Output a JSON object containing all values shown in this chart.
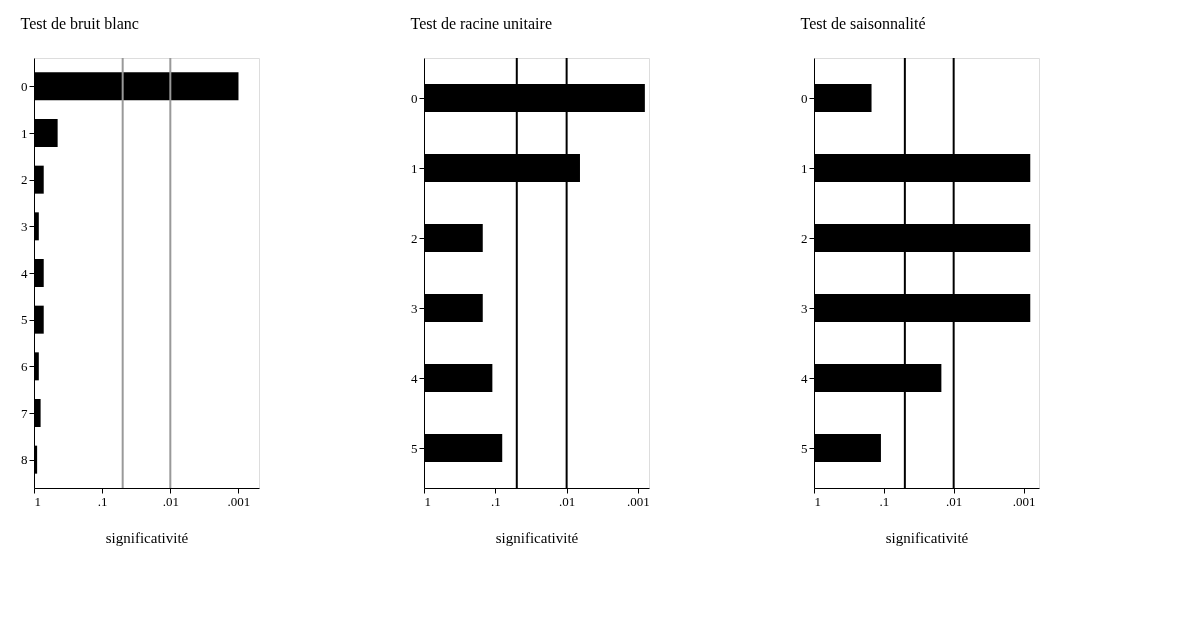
{
  "chart_data": [
    {
      "type": "bar",
      "orientation": "horizontal",
      "title": "Test de bruit blanc",
      "xlabel": "significativité",
      "categories": [
        "0",
        "1",
        "2",
        "3",
        "4",
        "5",
        "6",
        "7",
        "8"
      ],
      "base": [
        1,
        1,
        1,
        1,
        1,
        1,
        1,
        1,
        1
      ],
      "values": [
        -0.999,
        -0.55,
        -0.28,
        -0.15,
        -0.28,
        -0.28,
        -0.15,
        -0.2,
        -0.1
      ],
      "color": "#000000",
      "log": "x",
      "xlim": [
        1,
        0.0005
      ],
      "xticks": [
        1,
        {
          "value": 0.1,
          "label": ".1"
        },
        {
          "value": 0.01,
          "label": ".01"
        },
        {
          "value": 0.001,
          "label": ".001"
        }
      ],
      "ref_lines": [
        {
          "axis": "x",
          "value": 0.05,
          "color": "#999999"
        },
        {
          "axis": "x",
          "value": 0.01,
          "color": "#999999"
        }
      ],
      "grid": false
    },
    {
      "type": "bar",
      "orientation": "horizontal",
      "title": "Test de racine unitaire",
      "xlabel": "significativité",
      "categories": [
        "0",
        "1",
        "2",
        "3",
        "4",
        "5"
      ],
      "base": [
        1,
        1,
        1,
        1,
        1,
        1
      ],
      "values": [
        -0.9992,
        -0.9935,
        -0.85,
        -0.85,
        -0.89,
        -0.92
      ],
      "color": "#000000",
      "log": "x",
      "xlim": [
        1,
        0.0007
      ],
      "xticks": [
        1,
        {
          "value": 0.1,
          "label": ".1"
        },
        {
          "value": 0.01,
          "label": ".01"
        },
        {
          "value": 0.001,
          "label": ".001"
        }
      ],
      "ref_lines": [
        {
          "axis": "x",
          "value": 0.05,
          "color": "#000000"
        },
        {
          "axis": "x",
          "value": 0.01,
          "color": "#000000"
        }
      ],
      "grid": false
    },
    {
      "type": "bar",
      "orientation": "horizontal",
      "title": "Test de saisonnalité",
      "xlabel": "significativité",
      "categories": [
        "0",
        "1",
        "2",
        "3",
        "4",
        "5"
      ],
      "base": [
        1,
        1,
        1,
        1,
        1,
        1
      ],
      "values": [
        -0.85,
        -0.9992,
        -0.9992,
        -0.9992,
        -0.985,
        -0.89
      ],
      "color": "#000000",
      "log": "x",
      "xlim": [
        1,
        0.0006
      ],
      "xticks": [
        1,
        {
          "value": 0.1,
          "label": ".1"
        },
        {
          "value": 0.01,
          "label": ".01"
        },
        {
          "value": 0.001,
          "label": ".001"
        }
      ],
      "ref_lines": [
        {
          "axis": "x",
          "value": 0.05,
          "color": "#000000"
        },
        {
          "axis": "x",
          "value": 0.01,
          "color": "#000000"
        }
      ],
      "grid": false
    }
  ]
}
